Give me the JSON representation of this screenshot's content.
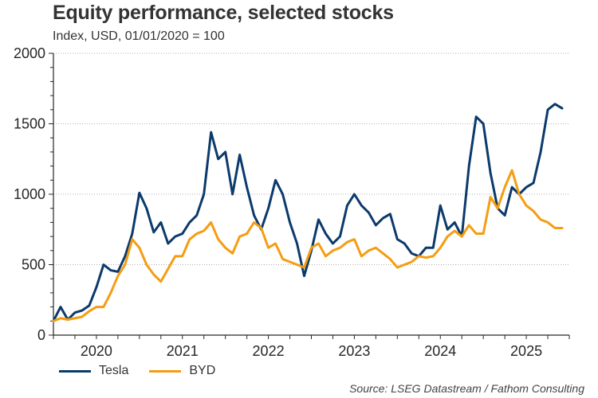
{
  "header": {
    "title": "Equity performance, selected stocks",
    "subtitle": "Index, USD, 01/01/2020 = 100"
  },
  "footer": {
    "source": "Source: LSEG Datastream / Fathom Consulting"
  },
  "colors": {
    "tesla": "#0b3a6b",
    "byd": "#f59d12",
    "axis": "#262626",
    "grid": "#b0b0b0"
  },
  "chart_data": {
    "type": "line",
    "title": "Equity performance, selected stocks",
    "subtitle": "Index, USD, 01/01/2020 = 100",
    "xlabel": "",
    "ylabel": "",
    "ylim": [
      0,
      2000
    ],
    "yticks": [
      0,
      500,
      1000,
      1500,
      2000
    ],
    "ytick_labels": [
      "0",
      "500",
      "1000",
      "1500",
      "2000"
    ],
    "xlim": [
      "2020-01",
      "2025-12"
    ],
    "xtick_labels": [
      "2020",
      "2021",
      "2022",
      "2023",
      "2024",
      "2025"
    ],
    "grid": "horizontal dotted",
    "legend": "bottom-left",
    "source": "Source: LSEG Datastream / Fathom Consulting",
    "x": [
      "2020-01",
      "2020-02",
      "2020-03",
      "2020-04",
      "2020-05",
      "2020-06",
      "2020-07",
      "2020-08",
      "2020-09",
      "2020-10",
      "2020-11",
      "2020-12",
      "2021-01",
      "2021-02",
      "2021-03",
      "2021-04",
      "2021-05",
      "2021-06",
      "2021-07",
      "2021-08",
      "2021-09",
      "2021-10",
      "2021-11",
      "2021-12",
      "2022-01",
      "2022-02",
      "2022-03",
      "2022-04",
      "2022-05",
      "2022-06",
      "2022-07",
      "2022-08",
      "2022-09",
      "2022-10",
      "2022-11",
      "2022-12",
      "2023-01",
      "2023-02",
      "2023-03",
      "2023-04",
      "2023-05",
      "2023-06",
      "2023-07",
      "2023-08",
      "2023-09",
      "2023-10",
      "2023-11",
      "2023-12",
      "2024-01",
      "2024-02",
      "2024-03",
      "2024-04",
      "2024-05",
      "2024-06",
      "2024-07",
      "2024-08",
      "2024-09",
      "2024-10",
      "2024-11",
      "2024-12",
      "2025-01",
      "2025-02",
      "2025-03",
      "2025-04",
      "2025-05",
      "2025-06",
      "2025-07",
      "2025-08",
      "2025-09",
      "2025-10",
      "2025-11",
      "2025-12"
    ],
    "series": [
      {
        "name": "Tesla",
        "color": "#0b3a6b",
        "values": [
          100,
          200,
          110,
          160,
          175,
          210,
          340,
          500,
          460,
          450,
          560,
          720,
          1010,
          900,
          730,
          800,
          650,
          700,
          720,
          800,
          850,
          1000,
          1440,
          1250,
          1300,
          1000,
          1280,
          1050,
          850,
          750,
          900,
          1100,
          1000,
          800,
          650,
          420,
          600,
          820,
          720,
          650,
          700,
          920,
          1000,
          920,
          870,
          780,
          830,
          860,
          680,
          650,
          580,
          560,
          620,
          620,
          920,
          750,
          800,
          700,
          1200,
          1550,
          1500,
          1150,
          900,
          850,
          1050,
          1000,
          1050,
          1080,
          1300,
          1600,
          1640,
          1610
        ]
      },
      {
        "name": "BYD",
        "color": "#f59d12",
        "values": [
          100,
          120,
          110,
          120,
          130,
          170,
          200,
          200,
          300,
          420,
          500,
          680,
          620,
          500,
          430,
          380,
          470,
          560,
          560,
          680,
          720,
          740,
          800,
          680,
          620,
          580,
          700,
          720,
          800,
          760,
          620,
          650,
          540,
          520,
          500,
          480,
          620,
          650,
          560,
          600,
          620,
          660,
          680,
          560,
          600,
          620,
          580,
          540,
          480,
          500,
          520,
          560,
          550,
          560,
          620,
          700,
          740,
          700,
          780,
          720,
          720,
          980,
          900,
          1050,
          1170,
          1000,
          920,
          880,
          820,
          800,
          760,
          760
        ]
      }
    ]
  }
}
